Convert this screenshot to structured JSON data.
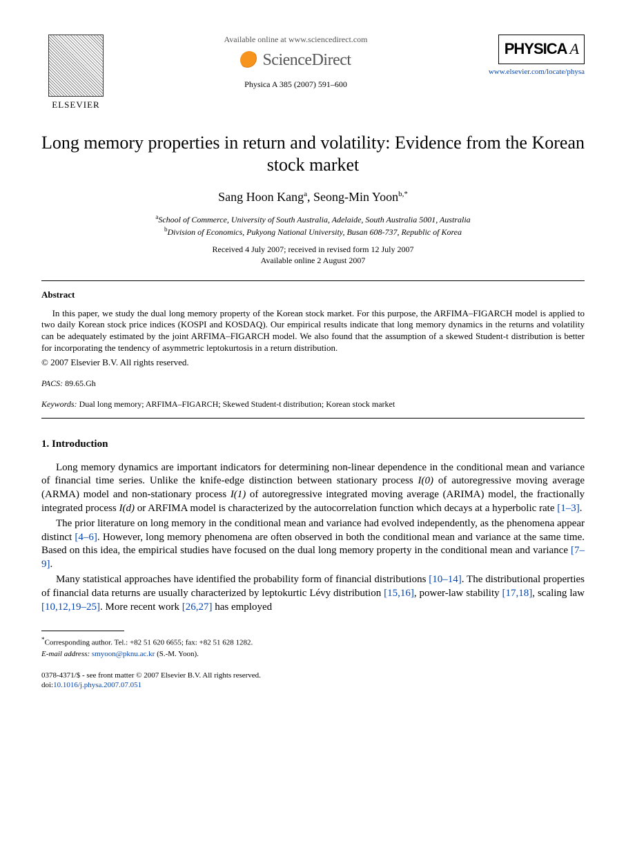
{
  "header": {
    "available_online": "Available online at www.sciencedirect.com",
    "sciencedirect": "ScienceDirect",
    "elsevier_label": "ELSEVIER",
    "journal_ref": "Physica A 385 (2007) 591–600",
    "physica_label": "PHYSICA",
    "physica_letter": "A",
    "journal_url": "www.elsevier.com/locate/physa"
  },
  "title": "Long memory properties in return and volatility: Evidence from the Korean stock market",
  "authors": {
    "a1_name": "Sang Hoon Kang",
    "a1_sup": "a",
    "a2_name": "Seong-Min Yoon",
    "a2_sup": "b,",
    "corr": "*"
  },
  "affiliations": {
    "a": "School of Commerce, University of South Australia, Adelaide, South Australia 5001, Australia",
    "b": "Division of Economics, Pukyong National University, Busan 608-737, Republic of Korea"
  },
  "dates": {
    "received": "Received 4 July 2007; received in revised form 12 July 2007",
    "online": "Available online 2 August 2007"
  },
  "abstract": {
    "heading": "Abstract",
    "text": "In this paper, we study the dual long memory property of the Korean stock market. For this purpose, the ARFIMA–FIGARCH model is applied to two daily Korean stock price indices (KOSPI and KOSDAQ). Our empirical results indicate that long memory dynamics in the returns and volatility can be adequately estimated by the joint ARFIMA–FIGARCH model. We also found that the assumption of a skewed Student-t distribution is better for incorporating the tendency of asymmetric leptokurtosis in a return distribution.",
    "copyright": "© 2007 Elsevier B.V. All rights reserved."
  },
  "pacs": {
    "label": "PACS:",
    "value": "89.65.Gh"
  },
  "keywords": {
    "label": "Keywords:",
    "value": "Dual long memory; ARFIMA–FIGARCH; Skewed Student-t distribution; Korean stock market"
  },
  "sections": {
    "intro_heading": "1.  Introduction",
    "p1a": "Long memory dynamics are important indicators for determining non-linear dependence in the conditional mean and variance of financial time series. Unlike the knife-edge distinction between stationary process ",
    "p1b": " of autoregressive moving average (ARMA) model and non-stationary process ",
    "p1c": " of autoregressive integrated moving average (ARIMA) model, the fractionally integrated process ",
    "p1d": " or ARFIMA model is characterized by the autocorrelation function which decays at a hyperbolic rate ",
    "p1_ref": "[1–3]",
    "I0": "I(0)",
    "I1": "I(1)",
    "Id": "I(d)",
    "p2a": "The prior literature on long memory in the conditional mean and variance had evolved independently, as the phenomena appear distinct ",
    "p2_ref1": "[4–6]",
    "p2b": ". However, long memory phenomena are often observed in both the conditional mean and variance at the same time. Based on this idea, the empirical studies have focused on the dual long memory property in the conditional mean and variance ",
    "p2_ref2": "[7–9]",
    "p3a": "Many statistical approaches have identified the probability form of financial distributions ",
    "p3_ref1": "[10–14]",
    "p3b": ". The distributional properties of financial data returns are usually characterized by leptokurtic Lévy distribution ",
    "p3_ref2": "[15,16]",
    "p3c": ", power-law stability ",
    "p3_ref3": "[17,18]",
    "p3d": ", scaling law ",
    "p3_ref4": "[10,12,19–25]",
    "p3e": ". More recent work ",
    "p3_ref5": "[26,27]",
    "p3f": " has employed"
  },
  "footnote": {
    "corr": "Corresponding author. Tel.: +82 51 620 6655; fax: +82 51 628 1282.",
    "email_label": "E-mail address:",
    "email": "smyoon@pknu.ac.kr",
    "email_who": "(S.-M. Yoon)."
  },
  "bottom": {
    "front_matter": "0378-4371/$ - see front matter © 2007 Elsevier B.V. All rights reserved.",
    "doi_label": "doi:",
    "doi": "10.1016/j.physa.2007.07.051"
  },
  "colors": {
    "link": "#0645ad",
    "text": "#000000",
    "bg": "#ffffff"
  }
}
